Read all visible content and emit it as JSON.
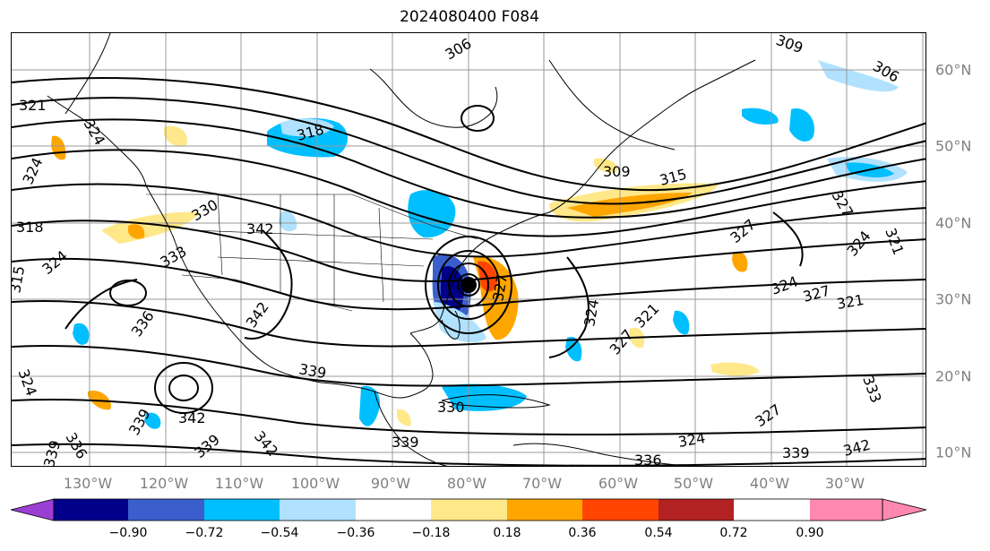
{
  "title": "2024080400 F084",
  "lon_labels": [
    "130°W",
    "120°W",
    "110°W",
    "100°W",
    "90°W",
    "80°W",
    "70°W",
    "60°W",
    "50°W",
    "40°W",
    "30°W"
  ],
  "lat_labels": [
    "60°N",
    "50°N",
    "40°N",
    "30°N",
    "20°N",
    "10°N"
  ],
  "colorbar": {
    "ticks": [
      "−0.90",
      "−0.72",
      "−0.54",
      "−0.36",
      "−0.18",
      "0.18",
      "0.36",
      "0.54",
      "0.72",
      "0.90"
    ],
    "colors": [
      "#9b3fd4",
      "#00008b",
      "#3a5fcd",
      "#00bfff",
      "#b0e2ff",
      "#ffffff",
      "#ffe88a",
      "#ffa500",
      "#ff4500",
      "#b22222",
      "#ff88b0"
    ]
  },
  "contour_labels": [
    "321",
    "324",
    "318",
    "315",
    "324",
    "330",
    "342",
    "333",
    "336",
    "342",
    "339",
    "324",
    "339",
    "342",
    "339",
    "342",
    "318",
    "306",
    "309",
    "309",
    "306",
    "315",
    "327",
    "327",
    "324",
    "327",
    "321",
    "321",
    "324",
    "321",
    "327",
    "333",
    "327",
    "339",
    "342",
    "336",
    "324",
    "330",
    "339",
    "327",
    "324",
    "339",
    "336",
    "324"
  ],
  "map_colors": {
    "contour": "#000000",
    "grid": "#999999",
    "coast": "#000000",
    "storm_center": "#000000"
  }
}
